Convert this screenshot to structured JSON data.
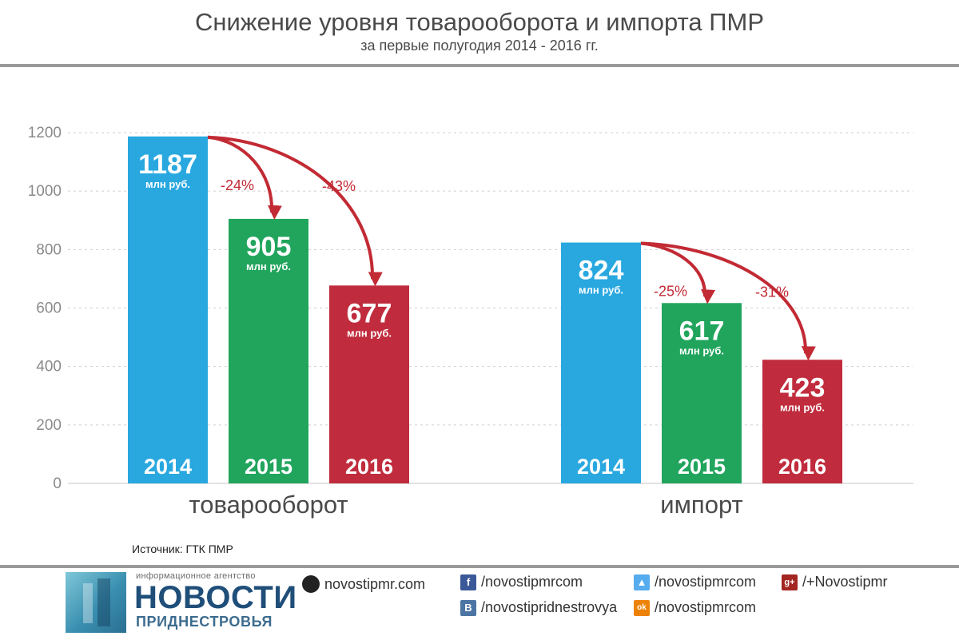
{
  "header": {
    "title": "Снижение уровня товарооборота и импорта ПМР",
    "subtitle": "за первые полугодия 2014 - 2016 гг."
  },
  "chart_data": {
    "type": "bar",
    "ylim": [
      0,
      1200
    ],
    "yticks": [
      "0",
      "200",
      "400",
      "600",
      "800",
      "1000",
      "1200"
    ],
    "grid": true,
    "unit_label": "млн руб.",
    "colors": {
      "2014": "#29a8e0",
      "2015": "#21a55d",
      "2016": "#c02c3d",
      "arrow": "#c22a34",
      "pct_text": "#c22a34"
    },
    "groups": [
      {
        "name": "товарооборот",
        "bars": [
          {
            "year": "2014",
            "value": 1187,
            "label": "1187"
          },
          {
            "year": "2015",
            "value": 905,
            "label": "905"
          },
          {
            "year": "2016",
            "value": 677,
            "label": "677"
          }
        ],
        "changes": [
          "-24%",
          "-43%"
        ]
      },
      {
        "name": "импорт",
        "bars": [
          {
            "year": "2014",
            "value": 824,
            "label": "824"
          },
          {
            "year": "2015",
            "value": 617,
            "label": "617"
          },
          {
            "year": "2016",
            "value": 423,
            "label": "423"
          }
        ],
        "changes": [
          "-25%",
          "-31%"
        ]
      }
    ]
  },
  "footer": {
    "source": "Источник: ГТК ПМР",
    "agency_small": "информационное агентство",
    "agency_big": "НОВОСТИ",
    "agency_sub": "ПРИДНЕСТРОВЬЯ",
    "website": "novostipmr.com",
    "facebook": "/novostipmrcom",
    "vk": "/novostipridnestrovya",
    "twitter": "/novostipmrcom",
    "odnoklassniki": "/novostipmrcom",
    "googleplus": "/+Novostipmr",
    "fb_glyph": "f",
    "vk_glyph": "B",
    "gp_glyph": "g+",
    "ok_glyph": "ok"
  }
}
